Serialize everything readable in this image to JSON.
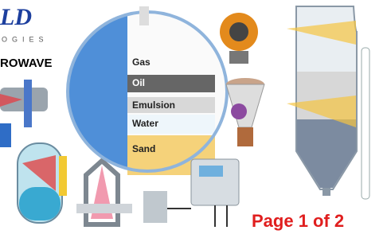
{
  "logo": {
    "mark": "LD",
    "tagline": "OGIES"
  },
  "heading": "ROWAVE",
  "separator_layers": [
    "Gas",
    "Oil",
    "Emulsion",
    "Water",
    "Sand"
  ],
  "page_label": "Page 1 of 2"
}
